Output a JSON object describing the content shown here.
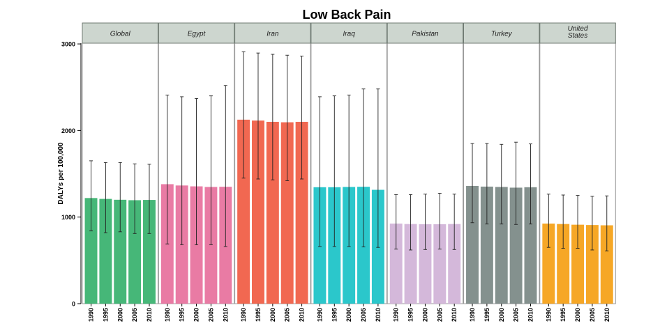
{
  "chart_data": {
    "type": "bar",
    "title": "Low Back Pain",
    "ylabel": "DALYs per 100,000",
    "xlabel": "",
    "ylim": [
      0,
      3250
    ],
    "yticks": [
      0,
      1000,
      2000,
      3000
    ],
    "categories": [
      "1990",
      "1995",
      "2000",
      "2005",
      "2010"
    ],
    "grid": false,
    "panels": [
      {
        "name": "Global",
        "color": "#3cb371",
        "values": [
          1220,
          1210,
          1200,
          1195,
          1198
        ],
        "lower": [
          840,
          820,
          830,
          810,
          810
        ],
        "upper": [
          1650,
          1630,
          1630,
          1615,
          1610
        ]
      },
      {
        "name": "Egypt",
        "color": "#e8749f",
        "values": [
          1380,
          1365,
          1355,
          1348,
          1350
        ],
        "lower": [
          690,
          680,
          680,
          680,
          660
        ],
        "upper": [
          2410,
          2390,
          2370,
          2400,
          2520
        ]
      },
      {
        "name": "Iran",
        "color": "#f06048",
        "values": [
          2125,
          2115,
          2100,
          2095,
          2100
        ],
        "lower": [
          1450,
          1440,
          1430,
          1420,
          1440
        ],
        "upper": [
          2910,
          2895,
          2880,
          2870,
          2860
        ]
      },
      {
        "name": "Iraq",
        "color": "#20c4c8",
        "values": [
          1345,
          1345,
          1348,
          1350,
          1315
        ],
        "lower": [
          660,
          660,
          660,
          655,
          650
        ],
        "upper": [
          2390,
          2400,
          2410,
          2480,
          2480
        ]
      },
      {
        "name": "Pakistan",
        "color": "#d2b4d8",
        "values": [
          925,
          920,
          918,
          918,
          920
        ],
        "lower": [
          630,
          620,
          625,
          630,
          625
        ],
        "upper": [
          1260,
          1260,
          1265,
          1275,
          1265
        ]
      },
      {
        "name": "Turkey",
        "color": "#7d8b88",
        "values": [
          1360,
          1352,
          1348,
          1340,
          1345
        ],
        "lower": [
          935,
          920,
          920,
          915,
          920
        ],
        "upper": [
          1850,
          1850,
          1840,
          1865,
          1845
        ]
      },
      {
        "name": "United\nStates",
        "color": "#f6a21a",
        "values": [
          925,
          920,
          912,
          908,
          905
        ],
        "lower": [
          650,
          640,
          640,
          620,
          610
        ],
        "upper": [
          1265,
          1255,
          1250,
          1240,
          1245
        ]
      }
    ]
  }
}
